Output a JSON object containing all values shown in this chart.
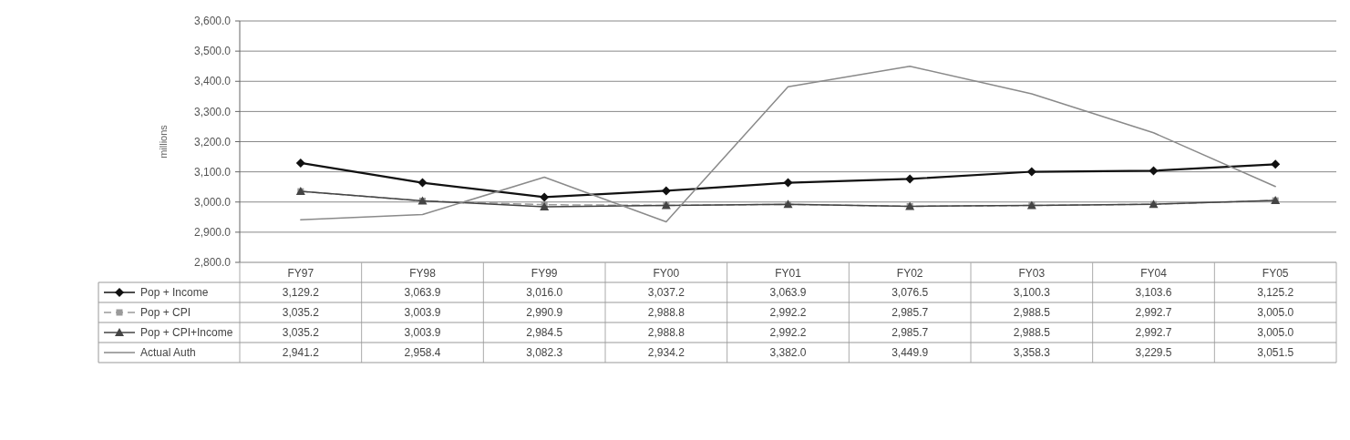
{
  "chart_data": {
    "type": "line",
    "ylabel": "millions",
    "categories": [
      "FY97",
      "FY98",
      "FY99",
      "FY00",
      "FY01",
      "FY02",
      "FY03",
      "FY04",
      "FY05"
    ],
    "series": [
      {
        "name": "Pop + Income",
        "color": "#111111",
        "marker": "diamond",
        "line_style": "solid",
        "values": [
          3129.2,
          3063.9,
          3016.0,
          3037.2,
          3063.9,
          3076.5,
          3100.3,
          3103.6,
          3125.2
        ],
        "value_labels": [
          "3,129.2",
          "3,063.9",
          "3,016.0",
          "3,037.2",
          "3,063.9",
          "3,076.5",
          "3,100.3",
          "3,103.6",
          "3,125.2"
        ]
      },
      {
        "name": "Pop + CPI",
        "color": "#9a9a9a",
        "marker": "square",
        "line_style": "dashed",
        "values": [
          3035.2,
          3003.9,
          2990.9,
          2988.8,
          2992.2,
          2985.7,
          2988.5,
          2992.7,
          3005.0
        ],
        "value_labels": [
          "3,035.2",
          "3,003.9",
          "2,990.9",
          "2,988.8",
          "2,992.2",
          "2,985.7",
          "2,988.5",
          "2,992.7",
          "3,005.0"
        ]
      },
      {
        "name": "Pop + CPI+Income",
        "color": "#444444",
        "marker": "triangle",
        "line_style": "solid",
        "values": [
          3035.2,
          3003.9,
          2984.5,
          2988.8,
          2992.2,
          2985.7,
          2988.5,
          2992.7,
          3005.0
        ],
        "value_labels": [
          "3,035.2",
          "3,003.9",
          "2,984.5",
          "2,988.8",
          "2,992.2",
          "2,985.7",
          "2,988.5",
          "2,992.7",
          "3,005.0"
        ]
      },
      {
        "name": "Actual Auth",
        "color": "#8a8a8a",
        "marker": "none",
        "line_style": "solid",
        "values": [
          2941.2,
          2958.4,
          3082.3,
          2934.2,
          3382.0,
          3449.9,
          3358.3,
          3229.5,
          3051.5
        ],
        "value_labels": [
          "2,941.2",
          "2,958.4",
          "3,082.3",
          "2,934.2",
          "3,382.0",
          "3,449.9",
          "3,358.3",
          "3,229.5",
          "3,051.5"
        ]
      }
    ],
    "ylim": [
      2800,
      3600
    ],
    "yticks": [
      {
        "value": 2800,
        "label": "2,800.0"
      },
      {
        "value": 2900,
        "label": "2,900.0"
      },
      {
        "value": 3000,
        "label": "3,000.0"
      },
      {
        "value": 3100,
        "label": "3,100.0"
      },
      {
        "value": 3200,
        "label": "3,200.0"
      },
      {
        "value": 3300,
        "label": "3,300.0"
      },
      {
        "value": 3400,
        "label": "3,400.0"
      },
      {
        "value": 3500,
        "label": "3,500.0"
      },
      {
        "value": 3600,
        "label": "3,600.0"
      }
    ],
    "grid": "y",
    "legend": "bottom"
  }
}
